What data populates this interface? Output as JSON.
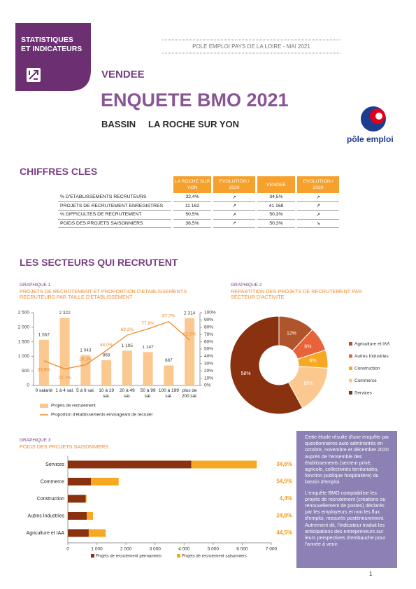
{
  "header": {
    "badge": [
      "STATISTIQUES",
      "ET INDICATEURS"
    ],
    "source": "POLE EMPLOI PAYS DE LA LOIRE - MAI 2021",
    "region": "VENDEE",
    "title": "ENQUETE BMO 2021",
    "basin_label": "BASSIN",
    "basin": "LA ROCHE SUR YON",
    "logo": "pôle emploi"
  },
  "key_figures": {
    "title": "CHIFFRES CLES",
    "columns": [
      "LA ROCHE SUR YON",
      "EVOLUTION / 2020",
      "VENDEE",
      "EVOLUTION / 2020"
    ],
    "rows": [
      {
        "label": "% D'ETABLISSEMENTS RECRUTEURS",
        "values": [
          "32,4%",
          "↗",
          "34,5%",
          "↗"
        ]
      },
      {
        "label": "PROJETS DE RECRUTEMENT ENREGISTRES",
        "values": [
          "11 162",
          "↗",
          "41 168",
          "↗"
        ]
      },
      {
        "label": "% DIFFICULTES DE RECRUTEMENT",
        "values": [
          "50,5%",
          "↗",
          "50,3%",
          "↗"
        ]
      },
      {
        "label": "POIDS DES PROJETS SAISONNIERS",
        "values": [
          "36,5%",
          "↗",
          "50,3%",
          "↘"
        ]
      }
    ]
  },
  "section_title": "LES SECTEURS QUI RECRUTENT",
  "chart_data": [
    {
      "type": "bar",
      "label": "GRAPHIQUE 1",
      "title": "PROJETS DE RECRUTEMENT ET PROPORTION D'ETABLISSEMENTS RECRUTEURS PAR TAILLE D'ETABLISSEMENT",
      "categories": [
        "0 salarié",
        "1 à 4 sal.",
        "5 à 9 sal.",
        "10 à 19 sal.",
        "20 à 49 sal.",
        "50 à 99 sal.",
        "100 à 199 sal.",
        "plus de 200 sal."
      ],
      "series": [
        {
          "name": "Projets de recrutement",
          "type": "bar",
          "color": "#fbc98f",
          "values": [
            1567,
            2322,
            1043,
            868,
            1195,
            1147,
            687,
            2314
          ],
          "value_labels": [
            "1 567",
            "2 322",
            "1 043",
            "868",
            "1 195",
            "1 147",
            "687",
            "2 314"
          ]
        },
        {
          "name": "Proportion d'établissements envisageant de recruter",
          "type": "line",
          "axis": "y2",
          "color": "#f08a2c",
          "values": [
            33.9,
            22.7,
            28.3,
            48.0,
            69.2,
            77.8,
            87.7,
            62.5
          ],
          "value_labels": [
            "33,9%",
            "22,7%",
            "28,3%",
            "48,0%",
            "69,2%",
            "77,8%",
            "87,7%",
            "62,5%"
          ]
        }
      ],
      "ylim": [
        0,
        2500
      ],
      "yticks": [
        0,
        500,
        {
          "value": 1000,
          "label": "1 000"
        },
        {
          "value": 1500,
          "label": "1 500"
        },
        {
          "value": 2000,
          "label": "2 000"
        },
        {
          "value": 2500,
          "label": "2 500"
        }
      ],
      "y2lim": [
        0,
        100
      ],
      "y2ticks": [
        {
          "value": 0,
          "label": "0%"
        },
        {
          "value": 10,
          "label": "10%"
        },
        {
          "value": 20,
          "label": "20%"
        },
        {
          "value": 30,
          "label": "30%"
        },
        {
          "value": 40,
          "label": "40%"
        },
        {
          "value": 50,
          "label": "50%"
        },
        {
          "value": 60,
          "label": "60%"
        },
        {
          "value": 70,
          "label": "70%"
        },
        {
          "value": 80,
          "label": "80%"
        },
        {
          "value": 90,
          "label": "90%"
        },
        {
          "value": 100,
          "label": "100%"
        }
      ]
    },
    {
      "type": "donut",
      "label": "GRAPHIQUE 2",
      "title": "REPARTITION DES PROJETS DE RECRUTEMENT PAR SECTEUR D'ACTIVITE",
      "categories": [
        "Agriculture et IAA",
        "Autres Industries",
        "Construction",
        "Commerce",
        "Services"
      ],
      "values": [
        12,
        8,
        6,
        16,
        58
      ],
      "value_labels": [
        "12%",
        "8%",
        "6%",
        "16%",
        "58%"
      ],
      "colors": [
        "#b0552b",
        "#e8623a",
        "#f7a823",
        "#fbc98f",
        "#8a3210"
      ]
    },
    {
      "type": "hbar_stacked",
      "label": "GRAPHIQUE 3",
      "title": "POIDS DES PROJETS SAISONNIERS",
      "categories": [
        "Services",
        "Commerce",
        "Construction",
        "Autres Industries",
        "Agriculture et IAA"
      ],
      "series": [
        {
          "name": "Projets de recrutement permanents",
          "color": "#8a3210",
          "values": [
            4250,
            795,
            615,
            650,
            720
          ]
        },
        {
          "name": "Projets de recrutement saisonniers",
          "color": "#f7a823",
          "values": [
            2250,
            955,
            28,
            215,
            580
          ]
        }
      ],
      "seasonal_share": {
        "values": [
          34.6,
          54.5,
          4.4,
          24.8,
          44.5
        ],
        "value_labels": [
          "34,6%",
          "54,5%",
          "4,4%",
          "24,8%",
          "44,5%"
        ]
      },
      "xlim": [
        0,
        7000
      ],
      "xticks": [
        0,
        {
          "value": 1000,
          "label": "1 000"
        },
        {
          "value": 2000,
          "label": "2 000"
        },
        {
          "value": 3000,
          "label": "3 000"
        },
        {
          "value": 4000,
          "label": "4 000"
        },
        {
          "value": 5000,
          "label": "5 000"
        },
        {
          "value": 6000,
          "label": "6 000"
        },
        {
          "value": 7000,
          "label": "7 000"
        }
      ]
    }
  ],
  "text_box": [
    "Cette étude résulte d'une enquête par questionnaires auto administrés en octobre, novembre et décembre 2020 auprès de l'ensemble des établissements (secteur privé, agricole, collectivités territoriales, fonction publique hospitalière) du bassin d'emploi.",
    "L'enquête BMO comptabilise les projets de recrutement (créations ou renouvellement de postes) déclarés par les employeurs et non les flux d'emploi, mesurés postérieurement. Autrement dit, l'indicateur traduit les anticipations des entrepreneurs sur leurs perspectives d'embauche pour l'année à venir."
  ],
  "page_number": "1"
}
